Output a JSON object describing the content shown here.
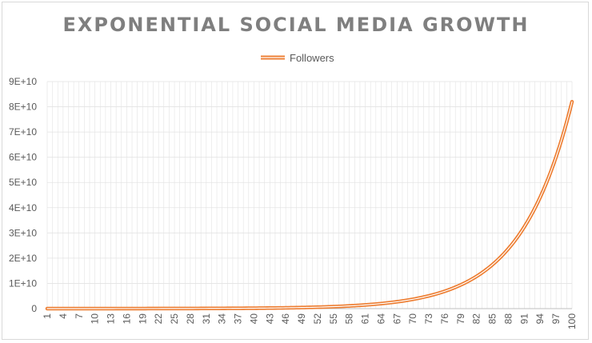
{
  "colors": {
    "series": "#ed7d31",
    "grid": "#e3e3e3",
    "axis": "#bfbfbf",
    "title": "#7f7f7f"
  },
  "chart_data": {
    "type": "line",
    "title": "EXPONENTIAL SOCIAL MEDIA GROWTH",
    "xlabel": "",
    "ylabel": "",
    "legend_position": "top",
    "grid": true,
    "series": [
      {
        "name": "Followers",
        "x_start": 1,
        "x_end": 100,
        "y_start": 3000000,
        "y_end": 82000000000,
        "growth": "exponential, ~10.8% per step"
      }
    ],
    "x_tick_labels": [
      "1",
      "4",
      "7",
      "10",
      "13",
      "16",
      "19",
      "22",
      "25",
      "28",
      "31",
      "34",
      "37",
      "40",
      "43",
      "46",
      "49",
      "52",
      "55",
      "58",
      "61",
      "64",
      "67",
      "70",
      "73",
      "76",
      "79",
      "82",
      "85",
      "88",
      "91",
      "94",
      "97",
      "100"
    ],
    "y_tick_labels": [
      "0",
      "1E+10",
      "2E+10",
      "3E+10",
      "4E+10",
      "5E+10",
      "6E+10",
      "7E+10",
      "8E+10",
      "9E+10"
    ],
    "ylim": [
      0,
      90000000000
    ],
    "xlim": [
      1,
      100
    ]
  }
}
